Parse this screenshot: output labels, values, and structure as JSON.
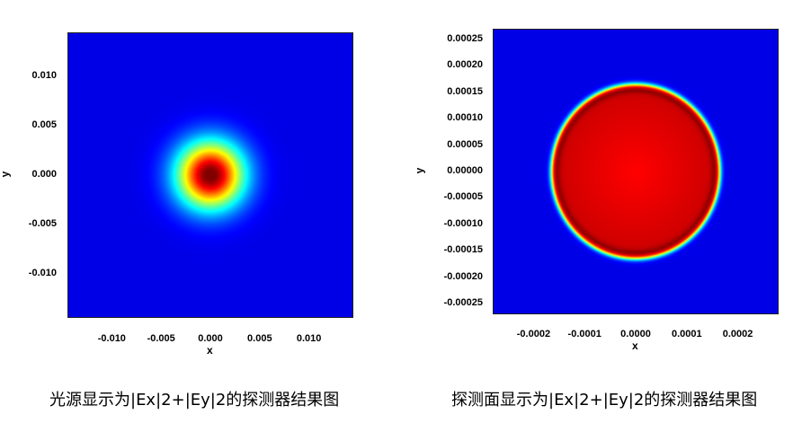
{
  "chart_data": [
    {
      "type": "heatmap",
      "title": "",
      "xlabel": "x",
      "ylabel": "y",
      "xlim": [
        -0.0145,
        0.0145
      ],
      "ylim": [
        -0.0145,
        0.0145
      ],
      "x_ticks": [
        "-0.010",
        "-0.005",
        "0.000",
        "0.005",
        "0.010"
      ],
      "x_tick_values": [
        -0.01,
        -0.005,
        0.0,
        0.005,
        0.01
      ],
      "y_ticks": [
        "0.010",
        "0.005",
        "0.000",
        "-0.005",
        "-0.010"
      ],
      "y_tick_values": [
        0.01,
        0.005,
        0.0,
        -0.005,
        -0.01
      ],
      "field": {
        "shape": "gaussian-spot",
        "center": [
          0.0,
          0.0
        ],
        "waist": 0.0048,
        "peak": 1.0
      },
      "colormap": "jet",
      "caption": "光源显示为|Ex|2+|Ey|2的探测器结果图"
    },
    {
      "type": "heatmap",
      "title": "",
      "xlabel": "x",
      "ylabel": "y",
      "xlim": [
        -0.00028,
        0.00028
      ],
      "ylim": [
        -0.00027,
        0.00027
      ],
      "x_ticks": [
        "-0.0002",
        "-0.0001",
        "0.0000",
        "0.0001",
        "0.0002"
      ],
      "x_tick_values": [
        -0.0002,
        -0.0001,
        0.0,
        0.0001,
        0.0002
      ],
      "y_ticks": [
        "0.00025",
        "0.00020",
        "0.00015",
        "0.00010",
        "0.00005",
        "0.00000",
        "-0.00005",
        "-0.00010",
        "-0.00015",
        "-0.00020",
        "-0.00025"
      ],
      "y_tick_values": [
        0.00025,
        0.0002,
        0.00015,
        0.0001,
        5e-05,
        0.0,
        -5e-05,
        -0.0001,
        -0.00015,
        -0.0002,
        -0.00025
      ],
      "field": {
        "shape": "flat-top-disk",
        "center": [
          0.0,
          0.0
        ],
        "radius": 0.000166,
        "peak": 1.0
      },
      "colormap": "jet",
      "caption": "探测面显示为|Ex|2+|Ey|2的探测器结果图"
    }
  ]
}
